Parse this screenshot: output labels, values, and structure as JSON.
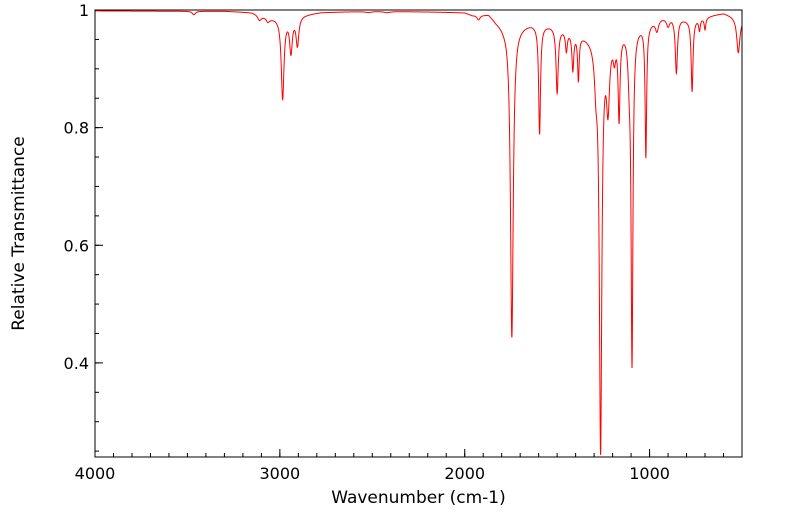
{
  "chart_data": {
    "type": "line",
    "title": "",
    "xlabel": "Wavenumber (cm-1)",
    "ylabel": "Relative Transmittance",
    "xlim": [
      4000,
      500
    ],
    "ylim": [
      0.24,
      1.0
    ],
    "x_reversed": true,
    "grid": false,
    "legend": "none",
    "x_ticks": [
      4000,
      3000,
      2000,
      1000
    ],
    "x_tick_labels": [
      "4000",
      "3000",
      "2000",
      "1000"
    ],
    "y_ticks": [
      1.0,
      0.8,
      0.6,
      0.4
    ],
    "y_tick_labels": [
      "1",
      "0.8",
      "0.6",
      "0.4"
    ],
    "series": [
      {
        "color": "#ff0000",
        "baseline": [
          [
            4000,
            0.9985
          ],
          [
            3600,
            0.998
          ],
          [
            3300,
            0.998
          ],
          [
            3150,
            0.996
          ],
          [
            3050,
            0.987
          ],
          [
            2850,
            0.993
          ],
          [
            2780,
            0.996
          ],
          [
            2500,
            0.998
          ],
          [
            2200,
            0.997
          ],
          [
            2000,
            0.996
          ],
          [
            1960,
            0.992
          ],
          [
            1870,
            0.994
          ],
          [
            1830,
            0.982
          ],
          [
            1790,
            0.975
          ],
          [
            1700,
            0.975
          ],
          [
            1640,
            0.978
          ],
          [
            1520,
            0.975
          ],
          [
            1420,
            0.965
          ],
          [
            1320,
            0.955
          ],
          [
            1290,
            0.95
          ],
          [
            1210,
            0.96
          ],
          [
            1130,
            0.97
          ],
          [
            1060,
            0.975
          ],
          [
            1000,
            0.98
          ],
          [
            950,
            0.988
          ],
          [
            900,
            0.99
          ],
          [
            880,
            0.99
          ],
          [
            800,
            0.985
          ],
          [
            700,
            0.988
          ],
          [
            650,
            0.992
          ],
          [
            600,
            0.995
          ],
          [
            550,
            0.99
          ],
          [
            500,
            0.985
          ]
        ],
        "bands": [
          [
            3465,
            0.006,
            10
          ],
          [
            3110,
            0.009,
            12
          ],
          [
            3065,
            0.007,
            10
          ],
          [
            2985,
            0.14,
            9
          ],
          [
            2940,
            0.06,
            9
          ],
          [
            2905,
            0.05,
            9
          ],
          [
            2520,
            0.002,
            20
          ],
          [
            2420,
            0.002,
            20
          ],
          [
            1925,
            0.008,
            10
          ],
          [
            1745,
            0.545,
            9
          ],
          [
            1595,
            0.19,
            6
          ],
          [
            1500,
            0.115,
            7
          ],
          [
            1450,
            0.035,
            6
          ],
          [
            1415,
            0.065,
            6
          ],
          [
            1385,
            0.08,
            5
          ],
          [
            1290,
            0.06,
            9
          ],
          [
            1265,
            0.74,
            8
          ],
          [
            1225,
            0.12,
            10
          ],
          [
            1190,
            0.035,
            8
          ],
          [
            1165,
            0.15,
            6
          ],
          [
            1110,
            0.06,
            8
          ],
          [
            1095,
            0.59,
            6
          ],
          [
            1020,
            0.23,
            5
          ],
          [
            960,
            0.02,
            10
          ],
          [
            900,
            0.015,
            10
          ],
          [
            855,
            0.095,
            7
          ],
          [
            770,
            0.125,
            6
          ],
          [
            730,
            0.02,
            5
          ],
          [
            700,
            0.02,
            5
          ],
          [
            520,
            0.06,
            10
          ]
        ]
      }
    ]
  }
}
